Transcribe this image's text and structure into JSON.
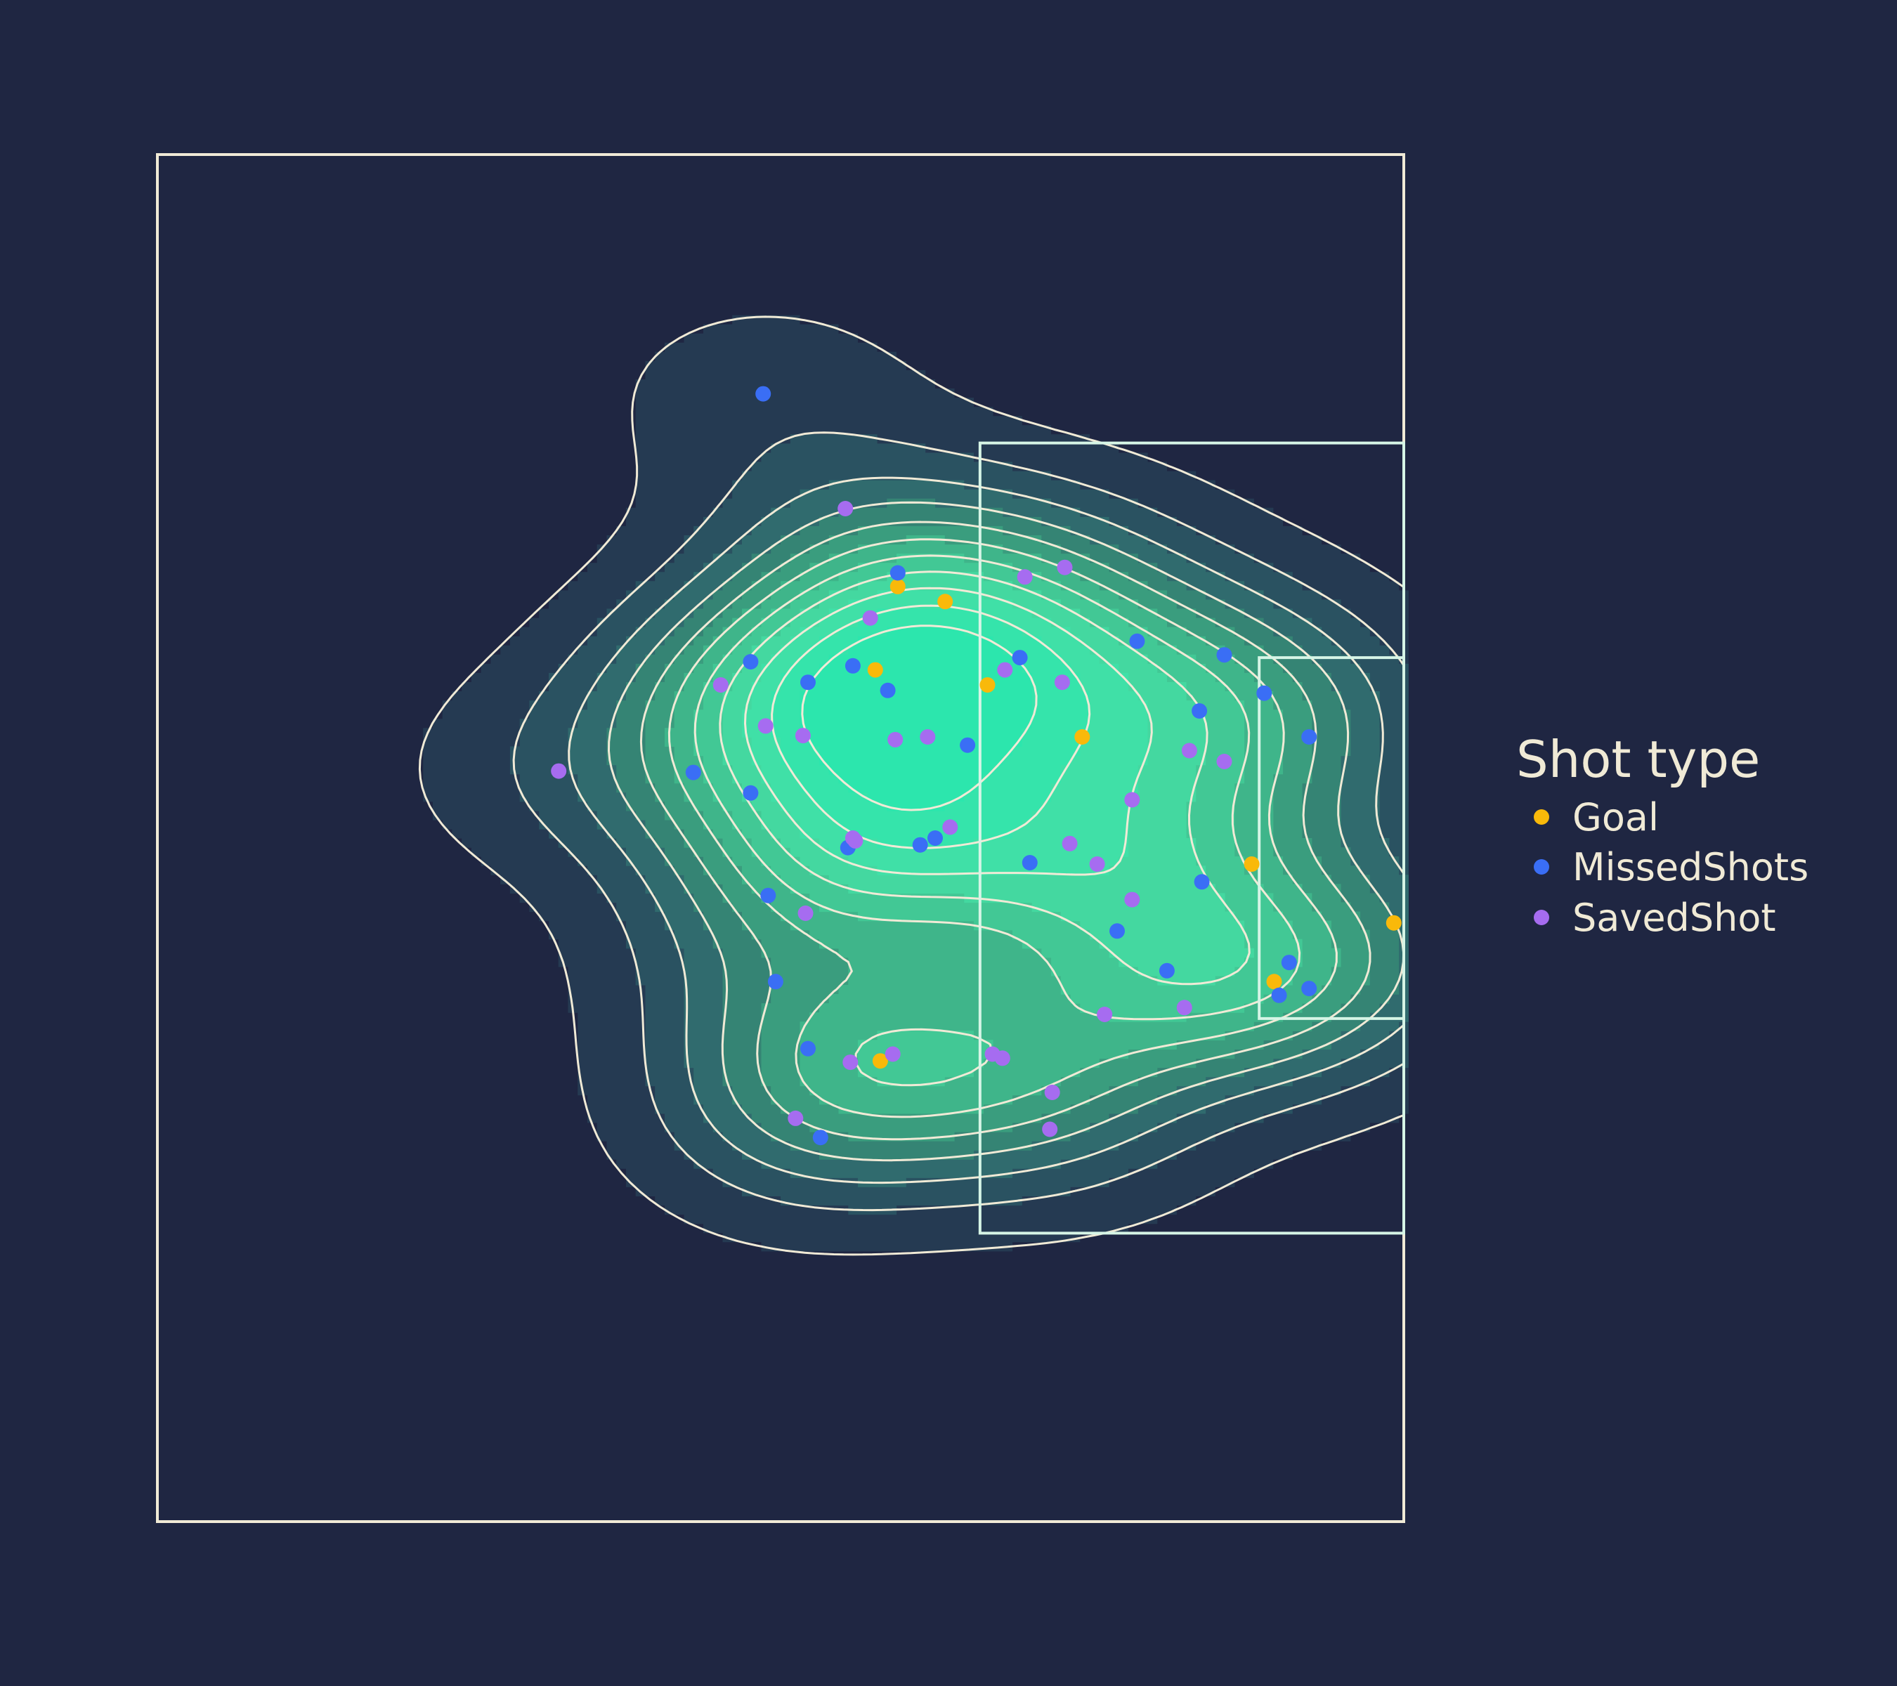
{
  "chart_data": {
    "type": "scatter",
    "title": "",
    "xlabel": "",
    "ylabel": "",
    "xlim": [
      50,
      100
    ],
    "ylim": [
      0,
      100
    ],
    "grid": false,
    "overlay": "kde-contour",
    "pitch": {
      "outline": [
        [
          50,
          0
        ],
        [
          100,
          100
        ]
      ],
      "penalty_box": [
        [
          83,
          21.1
        ],
        [
          100,
          78.9
        ]
      ],
      "six_yard_box": [
        [
          94.2,
          36.8
        ],
        [
          100,
          63.2
        ]
      ]
    },
    "legend": {
      "title": "Shot type",
      "placement": "right",
      "entries": [
        {
          "label": "Goal",
          "color": "#f9b90a"
        },
        {
          "label": "MissedShots",
          "color": "#3a6ef5"
        },
        {
          "label": "SavedShot",
          "color": "#a66cf0"
        }
      ]
    },
    "series": [
      {
        "name": "Goal",
        "color": "#f9b90a",
        "points": [
          [
            79.7,
            68.4
          ],
          [
            81.6,
            67.3
          ],
          [
            78.8,
            62.3
          ],
          [
            83.3,
            61.2
          ],
          [
            87.1,
            57.4
          ],
          [
            93.9,
            48.1
          ],
          [
            94.8,
            39.5
          ],
          [
            99.6,
            43.8
          ],
          [
            79,
            33.7
          ]
        ]
      },
      {
        "name": "MissedShots",
        "color": "#3a6ef5",
        "points": [
          [
            74.3,
            82.5
          ],
          [
            79.7,
            69.4
          ],
          [
            77.9,
            62.6
          ],
          [
            89.3,
            64.4
          ],
          [
            82.5,
            56.8
          ],
          [
            84.6,
            63.2
          ],
          [
            92.8,
            63.4
          ],
          [
            96.2,
            57.4
          ],
          [
            94.4,
            60.6
          ],
          [
            91.8,
            59.3
          ],
          [
            76.1,
            61.4
          ],
          [
            73.8,
            62.9
          ],
          [
            79.3,
            60.8
          ],
          [
            71.5,
            54.8
          ],
          [
            73.8,
            53.3
          ],
          [
            80.6,
            49.5
          ],
          [
            81.2,
            50
          ],
          [
            77.7,
            49.3
          ],
          [
            74.5,
            45.8
          ],
          [
            85,
            48.2
          ],
          [
            88.5,
            43.2
          ],
          [
            91.9,
            46.8
          ],
          [
            95.4,
            40.9
          ],
          [
            96.2,
            39
          ],
          [
            76.1,
            34.6
          ],
          [
            90.5,
            40.3
          ],
          [
            95,
            38.5
          ],
          [
            74.8,
            39.5
          ],
          [
            76.6,
            28.1
          ]
        ]
      },
      {
        "name": "SavedShot",
        "color": "#a66cf0",
        "points": [
          [
            77.6,
            74.1
          ],
          [
            84.8,
            69.1
          ],
          [
            86.4,
            69.8
          ],
          [
            78.6,
            66.1
          ],
          [
            84,
            62.3
          ],
          [
            86.3,
            61.4
          ],
          [
            80.9,
            57.4
          ],
          [
            79.6,
            57.2
          ],
          [
            75.9,
            57.5
          ],
          [
            91.4,
            56.4
          ],
          [
            89.1,
            52.8
          ],
          [
            92.8,
            55.6
          ],
          [
            89.1,
            45.5
          ],
          [
            81.8,
            50.8
          ],
          [
            86.6,
            49.6
          ],
          [
            87.7,
            48.1
          ],
          [
            78,
            49.8
          ],
          [
            77.9,
            50
          ],
          [
            74.4,
            58.2
          ],
          [
            72.6,
            61.2
          ],
          [
            76,
            44.5
          ],
          [
            79.5,
            34.2
          ],
          [
            83.5,
            34.2
          ],
          [
            83.9,
            33.9
          ],
          [
            85.9,
            31.4
          ],
          [
            91.2,
            37.6
          ],
          [
            88,
            37.1
          ],
          [
            77.8,
            33.6
          ],
          [
            75.6,
            29.5
          ],
          [
            85.8,
            28.7
          ],
          [
            66.1,
            54.9
          ]
        ]
      }
    ]
  }
}
